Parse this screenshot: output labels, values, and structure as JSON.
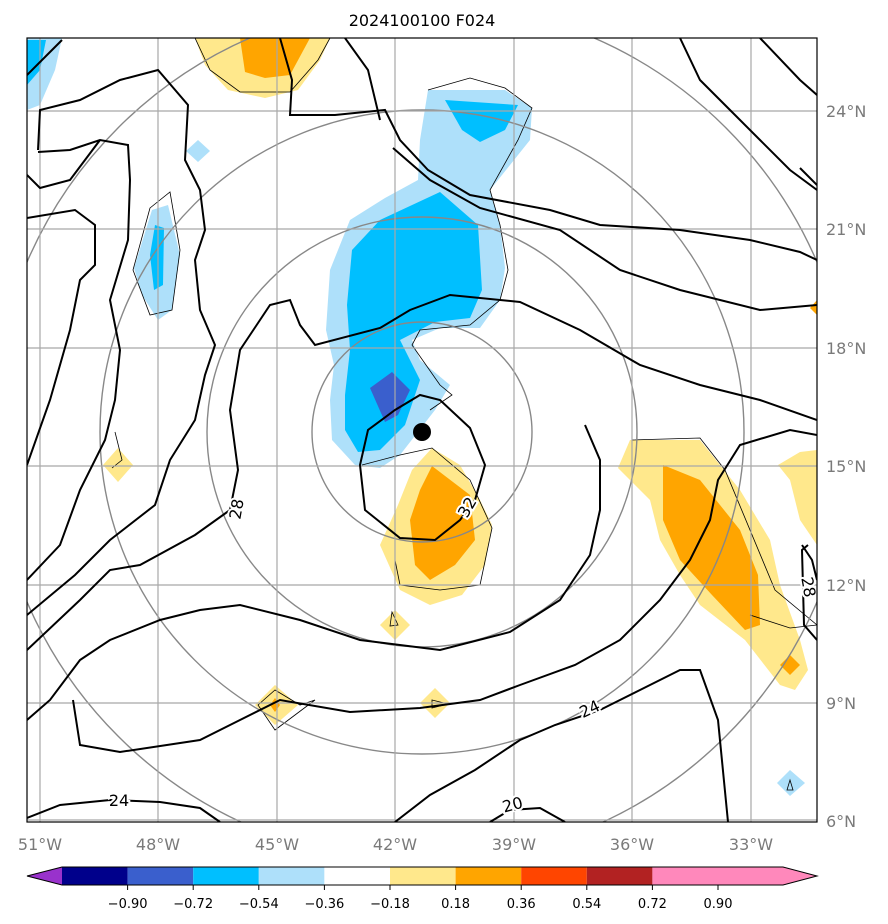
{
  "title": "2024100100 F024",
  "lon_ticks": [
    "51°W",
    "48°W",
    "45°W",
    "42°W",
    "39°W",
    "36°W",
    "33°W"
  ],
  "lat_ticks": [
    "24°N",
    "21°N",
    "18°N",
    "15°N",
    "12°N",
    "9°N",
    "6°N"
  ],
  "colorbar": {
    "colors": [
      "#9932cc",
      "#00008b",
      "#3a5fcd",
      "#00bfff",
      "#aee0fa",
      "#ffffff",
      "#ffe88c",
      "#ffa500",
      "#ff4500",
      "#b22222",
      "#ff88bb"
    ],
    "labels": [
      "−0.90",
      "−0.72",
      "−0.54",
      "−0.36",
      "−0.18",
      "0.18",
      "0.36",
      "0.54",
      "0.72",
      "0.90"
    ]
  },
  "contour_labels": [
    "28",
    "32",
    "28",
    "24",
    "24",
    "20"
  ],
  "storm_center": {
    "lat": "15.9°N",
    "lon": "41.1°W"
  }
}
